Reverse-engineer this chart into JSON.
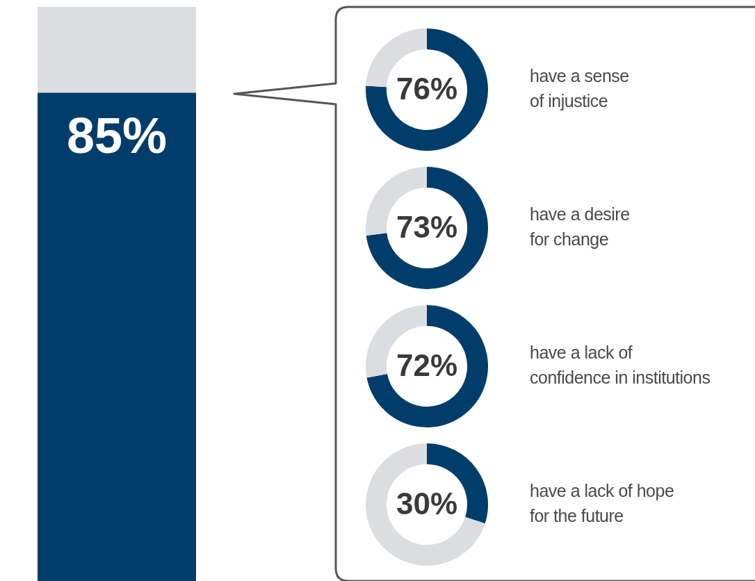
{
  "chart_data": [
    {
      "type": "bar",
      "stacked": true,
      "categories": [
        null
      ],
      "ylim": [
        0,
        100
      ],
      "series": [
        {
          "color": "#003d6a",
          "values": [
            85
          ],
          "value_labels": [
            "85%"
          ]
        },
        {
          "color": "#dcdde0",
          "values": [
            15
          ]
        }
      ]
    },
    {
      "type": "donut",
      "title": "have a sense\nof injustice",
      "categories": [
        null,
        null
      ],
      "values": [
        76,
        24
      ],
      "colors": [
        "#003d6a",
        "#dcdde0"
      ],
      "value_labels": [
        "76%",
        null
      ]
    },
    {
      "type": "donut",
      "title": "have a desire\nfor change",
      "categories": [
        null,
        null
      ],
      "values": [
        73,
        27
      ],
      "colors": [
        "#003d6a",
        "#dcdde0"
      ],
      "value_labels": [
        "73%",
        null
      ]
    },
    {
      "type": "donut",
      "title": "have a lack of\nconfidence in institutions",
      "categories": [
        null,
        null
      ],
      "values": [
        72,
        28
      ],
      "colors": [
        "#003d6a",
        "#dcdde0"
      ],
      "value_labels": [
        "72%",
        null
      ]
    },
    {
      "type": "donut",
      "title": "have a lack of hope\nfor the future",
      "categories": [
        null,
        null
      ],
      "values": [
        30,
        70
      ],
      "colors": [
        "#003d6a",
        "#dcdde0"
      ],
      "value_labels": [
        "30%",
        null
      ]
    }
  ]
}
